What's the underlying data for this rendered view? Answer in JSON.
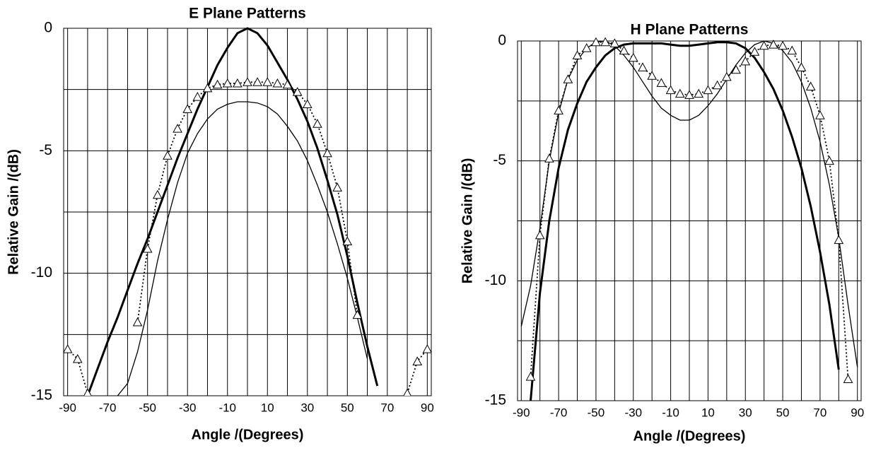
{
  "chart_data": [
    {
      "type": "line",
      "title": "E Plane Patterns",
      "xlabel": "Angle /(Degrees)",
      "ylabel": "Relative Gain /(dB)",
      "xlim": [
        -92,
        92
      ],
      "ylim": [
        -15,
        0
      ],
      "xticks": [
        -90,
        -70,
        -50,
        -30,
        -10,
        10,
        30,
        50,
        70,
        90
      ],
      "xminorticks": [
        -80,
        -60,
        -40,
        -20,
        0,
        20,
        40,
        60,
        80
      ],
      "yticks": [
        0,
        -5,
        -10,
        -15
      ],
      "yminorticks": [
        -2.5,
        -7.5,
        -12.5
      ],
      "grid": true,
      "x": [
        -90,
        -85,
        -80,
        -75,
        -70,
        -65,
        -60,
        -55,
        -50,
        -45,
        -40,
        -35,
        -30,
        -25,
        -20,
        -15,
        -10,
        -5,
        0,
        5,
        10,
        15,
        20,
        25,
        30,
        35,
        40,
        45,
        50,
        55,
        60,
        65,
        70,
        75,
        80,
        85,
        90
      ],
      "series": [
        {
          "color": "#000000",
          "width": 3,
          "dash": "solid",
          "marker": "none",
          "values": [
            null,
            null,
            -15,
            -13.9,
            -12.8,
            -11.8,
            -10.7,
            -9.6,
            -8.6,
            -7.5,
            -6.4,
            -5.3,
            -4.3,
            -3.3,
            -2.4,
            -1.5,
            -0.8,
            -0.2,
            0,
            -0.2,
            -0.7,
            -1.4,
            -2.1,
            -2.9,
            -3.8,
            -4.9,
            -6.2,
            -7.6,
            -9.3,
            -11.2,
            -13.0,
            -14.6,
            null,
            null,
            null,
            null,
            null
          ]
        },
        {
          "color": "#000000",
          "width": 1.3,
          "dash": "solid",
          "marker": "none",
          "values": [
            null,
            null,
            null,
            null,
            null,
            -15,
            -14.5,
            -13.2,
            -11.5,
            -9.5,
            -7.8,
            -6.3,
            -5.1,
            -4.3,
            -3.7,
            -3.3,
            -3.1,
            -3.0,
            -3.0,
            -3.05,
            -3.2,
            -3.5,
            -4.0,
            -4.6,
            -5.4,
            -6.4,
            -7.5,
            -8.8,
            -10.2,
            -11.8,
            -13.5,
            null,
            null,
            null,
            null,
            null,
            null
          ]
        },
        {
          "color": "#000000",
          "width": 1.8,
          "dash": "dotted",
          "marker": "triangle",
          "values": [
            -13.1,
            -13.5,
            -14.9,
            null,
            null,
            null,
            null,
            -12,
            -9,
            -6.8,
            -5.2,
            -4.1,
            -3.3,
            -2.8,
            -2.45,
            -2.3,
            -2.25,
            -2.25,
            -2.2,
            -2.2,
            -2.2,
            -2.25,
            -2.3,
            -2.6,
            -3.1,
            -3.9,
            -5.1,
            -6.5,
            -8.7,
            -11.7,
            null,
            null,
            null,
            null,
            -14.9,
            -13.6,
            -13.1
          ]
        }
      ]
    },
    {
      "type": "line",
      "title": "H Plane Patterns",
      "xlabel": "Angle /(Degrees)",
      "ylabel": "Relative Gain /(dB)",
      "xlim": [
        -92,
        92
      ],
      "ylim": [
        -15,
        0
      ],
      "xticks": [
        -90,
        -70,
        -50,
        -30,
        -10,
        10,
        30,
        50,
        70,
        90
      ],
      "xminorticks": [
        -80,
        -60,
        -40,
        -20,
        0,
        20,
        40,
        60,
        80
      ],
      "yticks": [
        0,
        -5,
        -10,
        -15
      ],
      "yminorticks": [
        -2.5,
        -7.5,
        -12.5
      ],
      "grid": true,
      "x": [
        -90,
        -85,
        -80,
        -75,
        -70,
        -65,
        -60,
        -55,
        -50,
        -45,
        -40,
        -35,
        -30,
        -25,
        -20,
        -15,
        -10,
        -5,
        0,
        5,
        10,
        15,
        20,
        25,
        30,
        35,
        40,
        45,
        50,
        55,
        60,
        65,
        70,
        75,
        80,
        85,
        90
      ],
      "series": [
        {
          "color": "#000000",
          "width": 3,
          "dash": "solid",
          "marker": "none",
          "values": [
            null,
            -15,
            -10.5,
            -7.5,
            -5.3,
            -3.7,
            -2.6,
            -1.7,
            -1.1,
            -0.6,
            -0.3,
            -0.15,
            -0.1,
            -0.1,
            -0.1,
            -0.1,
            -0.15,
            -0.2,
            -0.2,
            -0.15,
            -0.1,
            -0.05,
            -0.05,
            -0.1,
            -0.3,
            -0.7,
            -1.3,
            -2.0,
            -2.9,
            -4.0,
            -5.3,
            -6.9,
            -8.8,
            -11,
            -13.7,
            null,
            null
          ]
        },
        {
          "color": "#000000",
          "width": 1.3,
          "dash": "solid",
          "marker": "none",
          "values": [
            -11.9,
            -10.2,
            -7.8,
            -5.0,
            -3.0,
            -1.6,
            -0.8,
            -0.3,
            -0.05,
            0,
            -0.2,
            -0.6,
            -1.1,
            -1.7,
            -2.3,
            -2.8,
            -3.1,
            -3.3,
            -3.3,
            -3.1,
            -2.7,
            -2.2,
            -1.6,
            -1.0,
            -0.5,
            -0.15,
            0,
            -0.1,
            -0.4,
            -0.9,
            -1.7,
            -2.8,
            -4.2,
            -6.0,
            -8.2,
            -11.0,
            -13.6
          ]
        },
        {
          "color": "#000000",
          "width": 1.8,
          "dash": "dotted",
          "marker": "triangle",
          "values": [
            null,
            -14,
            -8.1,
            -4.9,
            -2.9,
            -1.6,
            -0.6,
            -0.3,
            -0.05,
            -0.05,
            -0.1,
            -0.4,
            -0.7,
            -1.1,
            -1.45,
            -1.75,
            -2.05,
            -2.2,
            -2.25,
            -2.2,
            -2.05,
            -1.85,
            -1.5,
            -1.2,
            -0.85,
            -0.45,
            -0.2,
            -0.15,
            -0.2,
            -0.4,
            -1.1,
            -1.9,
            -3.1,
            -5.0,
            -8.3,
            -14.1,
            null
          ]
        }
      ]
    }
  ]
}
